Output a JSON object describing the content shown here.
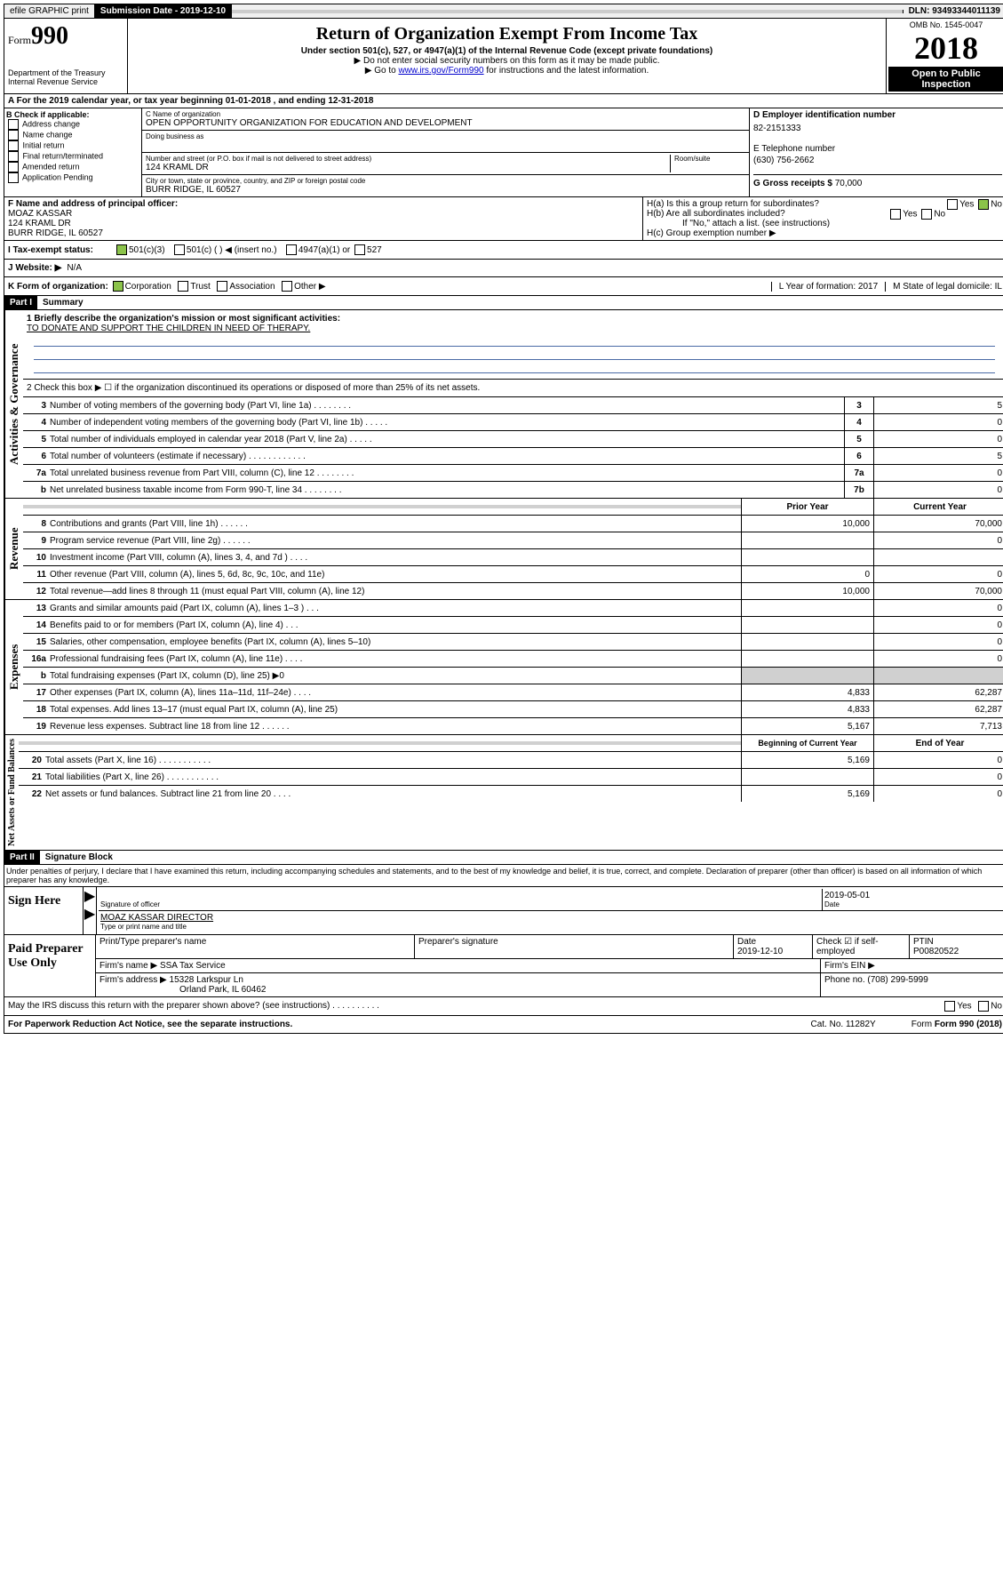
{
  "topbar": {
    "efile": "efile GRAPHIC print",
    "submission_label": "Submission Date - 2019-12-10",
    "dln": "DLN: 93493344011139"
  },
  "header": {
    "form_prefix": "Form",
    "form_number": "990",
    "title": "Return of Organization Exempt From Income Tax",
    "subtitle": "Under section 501(c), 527, or 4947(a)(1) of the Internal Revenue Code (except private foundations)",
    "note1": "▶ Do not enter social security numbers on this form as it may be made public.",
    "note2_pre": "▶ Go to ",
    "note2_link": "www.irs.gov/Form990",
    "note2_post": " for instructions and the latest information.",
    "dept": "Department of the Treasury\nInternal Revenue Service",
    "omb": "OMB No. 1545-0047",
    "year": "2018",
    "open": "Open to Public Inspection"
  },
  "meta": {
    "a_line": "A For the 2019 calendar year, or tax year beginning 01-01-2018    , and ending 12-31-2018"
  },
  "box_b": {
    "label": "B Check if applicable:",
    "opts": [
      "Address change",
      "Name change",
      "Initial return",
      "Final return/terminated",
      "Amended return",
      "Application Pending"
    ]
  },
  "box_c": {
    "name_label": "C Name of organization",
    "name": "OPEN OPPORTUNITY ORGANIZATION FOR EDUCATION AND DEVELOPMENT",
    "dba_label": "Doing business as",
    "dba": "",
    "street_label": "Number and street (or P.O. box if mail is not delivered to street address)",
    "room_label": "Room/suite",
    "street": "124 KRAML DR",
    "city_label": "City or town, state or province, country, and ZIP or foreign postal code",
    "city": "BURR RIDGE, IL  60527"
  },
  "box_d": {
    "label": "D Employer identification number",
    "value": "82-2151333"
  },
  "box_e": {
    "label": "E Telephone number",
    "value": "(630) 756-2662"
  },
  "box_g": {
    "label": "G Gross receipts $",
    "value": "70,000"
  },
  "box_f": {
    "label": "F  Name and address of principal officer:",
    "name": "MOAZ KASSAR",
    "street": "124 KRAML DR",
    "city": "BURR RIDGE, IL  60527"
  },
  "box_h": {
    "a_label": "H(a)  Is this a group return for subordinates?",
    "a_no_checked": true,
    "b_label": "H(b)  Are all subordinates included?",
    "b_note": "If \"No,\" attach a list. (see instructions)",
    "c_label": "H(c)  Group exemption number ▶"
  },
  "row_i": {
    "label": "I     Tax-exempt status:",
    "opt1": "501(c)(3)",
    "opt2": "501(c) (   ) ◀ (insert no.)",
    "opt3": "4947(a)(1) or",
    "opt4": "527"
  },
  "row_j": {
    "label": "J    Website: ▶",
    "value": "N/A"
  },
  "row_k": {
    "label": "K Form of organization:",
    "opts": [
      "Corporation",
      "Trust",
      "Association",
      "Other ▶"
    ],
    "l_label": "L Year of formation: 2017",
    "m_label": "M State of legal domicile: IL"
  },
  "part1": {
    "header": "Part I",
    "title": "Summary",
    "groups": {
      "ag": "Activities & Governance",
      "rev": "Revenue",
      "exp": "Expenses",
      "na": "Net Assets or Fund Balances"
    },
    "line1_label": "1  Briefly describe the organization's mission or most significant activities:",
    "line1_value": "TO DONATE AND SUPPORT THE CHILDREN IN NEED OF THERAPY.",
    "line2": "2   Check this box ▶ ☐  if the organization discontinued its operations or disposed of more than 25% of its net assets.",
    "rows_single": [
      {
        "num": "3",
        "desc": "Number of voting members of the governing body (Part VI, line 1a)  .   .   .   .   .   .   .   .",
        "cell": "3",
        "val": "5"
      },
      {
        "num": "4",
        "desc": "Number of independent voting members of the governing body (Part VI, line 1b)  .   .   .   .   .",
        "cell": "4",
        "val": "0"
      },
      {
        "num": "5",
        "desc": "Total number of individuals employed in calendar year 2018 (Part V, line 2a)   .   .   .   .   .",
        "cell": "5",
        "val": "0"
      },
      {
        "num": "6",
        "desc": "Total number of volunteers (estimate if necessary)  .   .   .   .   .   .   .   .   .   .   .   .",
        "cell": "6",
        "val": "5"
      },
      {
        "num": "7a",
        "desc": "Total unrelated business revenue from Part VIII, column (C), line 12   .   .   .   .   .   .   .   .",
        "cell": "7a",
        "val": "0"
      },
      {
        "num": "  b",
        "desc": "Net unrelated business taxable income from Form 990-T, line 34   .   .   .   .   .   .   .   .",
        "cell": "7b",
        "val": "0"
      }
    ],
    "col_headers": {
      "prior": "Prior Year",
      "current": "Current Year"
    },
    "rows_double_rev": [
      {
        "num": "8",
        "desc": "Contributions and grants (Part VIII, line 1h)   .   .   .   .   .   .",
        "prior": "10,000",
        "curr": "70,000"
      },
      {
        "num": "9",
        "desc": "Program service revenue (Part VIII, line 2g)   .   .   .   .   .   .",
        "prior": "",
        "curr": "0"
      },
      {
        "num": "10",
        "desc": "Investment income (Part VIII, column (A), lines 3, 4, and 7d )   .   .   .   .",
        "prior": "",
        "curr": ""
      },
      {
        "num": "11",
        "desc": "Other revenue (Part VIII, column (A), lines 5, 6d, 8c, 9c, 10c, and 11e)",
        "prior": "0",
        "curr": "0"
      },
      {
        "num": "12",
        "desc": "Total revenue—add lines 8 through 11 (must equal Part VIII, column (A), line 12)",
        "prior": "10,000",
        "curr": "70,000"
      }
    ],
    "rows_double_exp": [
      {
        "num": "13",
        "desc": "Grants and similar amounts paid (Part IX, column (A), lines 1–3 )   .   .   .",
        "prior": "",
        "curr": "0"
      },
      {
        "num": "14",
        "desc": "Benefits paid to or for members (Part IX, column (A), line 4)   .   .   .",
        "prior": "",
        "curr": "0"
      },
      {
        "num": "15",
        "desc": "Salaries, other compensation, employee benefits (Part IX, column (A), lines 5–10)",
        "prior": "",
        "curr": "0"
      },
      {
        "num": "16a",
        "desc": "Professional fundraising fees (Part IX, column (A), line 11e)   .   .   .   .",
        "prior": "",
        "curr": "0"
      },
      {
        "num": "  b",
        "desc": "Total fundraising expenses (Part IX, column (D), line 25) ▶0",
        "prior": "grey",
        "curr": "grey"
      },
      {
        "num": "17",
        "desc": "Other expenses (Part IX, column (A), lines 11a–11d, 11f–24e)   .   .   .   .",
        "prior": "4,833",
        "curr": "62,287"
      },
      {
        "num": "18",
        "desc": "Total expenses. Add lines 13–17 (must equal Part IX, column (A), line 25)",
        "prior": "4,833",
        "curr": "62,287"
      },
      {
        "num": "19",
        "desc": "Revenue less expenses. Subtract line 18 from line 12   .   .   .   .   .   .",
        "prior": "5,167",
        "curr": "7,713"
      }
    ],
    "na_headers": {
      "begin": "Beginning of Current Year",
      "end": "End of Year"
    },
    "rows_double_na": [
      {
        "num": "20",
        "desc": "Total assets (Part X, line 16)   .   .   .   .   .   .   .   .   .   .   .",
        "prior": "5,169",
        "curr": "0"
      },
      {
        "num": "21",
        "desc": "Total liabilities (Part X, line 26)   .   .   .   .   .   .   .   .   .   .   .",
        "prior": "",
        "curr": "0"
      },
      {
        "num": "22",
        "desc": "Net assets or fund balances. Subtract line 21 from line 20   .   .   .   .",
        "prior": "5,169",
        "curr": "0"
      }
    ]
  },
  "part2": {
    "header": "Part II",
    "title": "Signature Block",
    "perjury": "Under penalties of perjury, I declare that I have examined this return, including accompanying schedules and statements, and to the best of my knowledge and belief, it is true, correct, and complete. Declaration of preparer (other than officer) is based on all information of which preparer has any knowledge.",
    "sign_here": "Sign Here",
    "sig_officer_label": "Signature of officer",
    "sig_date": "2019-05-01",
    "sig_date_label": "Date",
    "sig_name": "MOAZ KASSAR  DIRECTOR",
    "sig_name_label": "Type or print name and title",
    "paid_label": "Paid Preparer Use Only",
    "prep_name_label": "Print/Type preparer's name",
    "prep_sig_label": "Preparer's signature",
    "prep_date_label": "Date",
    "prep_date": "2019-12-10",
    "prep_check_label": "Check ☑ if self-employed",
    "ptin_label": "PTIN",
    "ptin": "P00820522",
    "firm_name_label": "Firm's name    ▶",
    "firm_name": "SSA Tax Service",
    "firm_ein_label": "Firm's EIN ▶",
    "firm_addr_label": "Firm's address ▶",
    "firm_addr1": "15328 Larkspur Ln",
    "firm_addr2": "Orland Park, IL  60462",
    "phone_label": "Phone no.",
    "phone": "(708) 299-5999",
    "discuss": "May the IRS discuss this return with the preparer shown above? (see instructions)    .    .    .    .    .    .    .    .    .    .",
    "yes": "Yes",
    "no": "No"
  },
  "footer": {
    "paperwork": "For Paperwork Reduction Act Notice, see the separate instructions.",
    "cat": "Cat. No. 11282Y",
    "form": "Form 990 (2018)"
  }
}
